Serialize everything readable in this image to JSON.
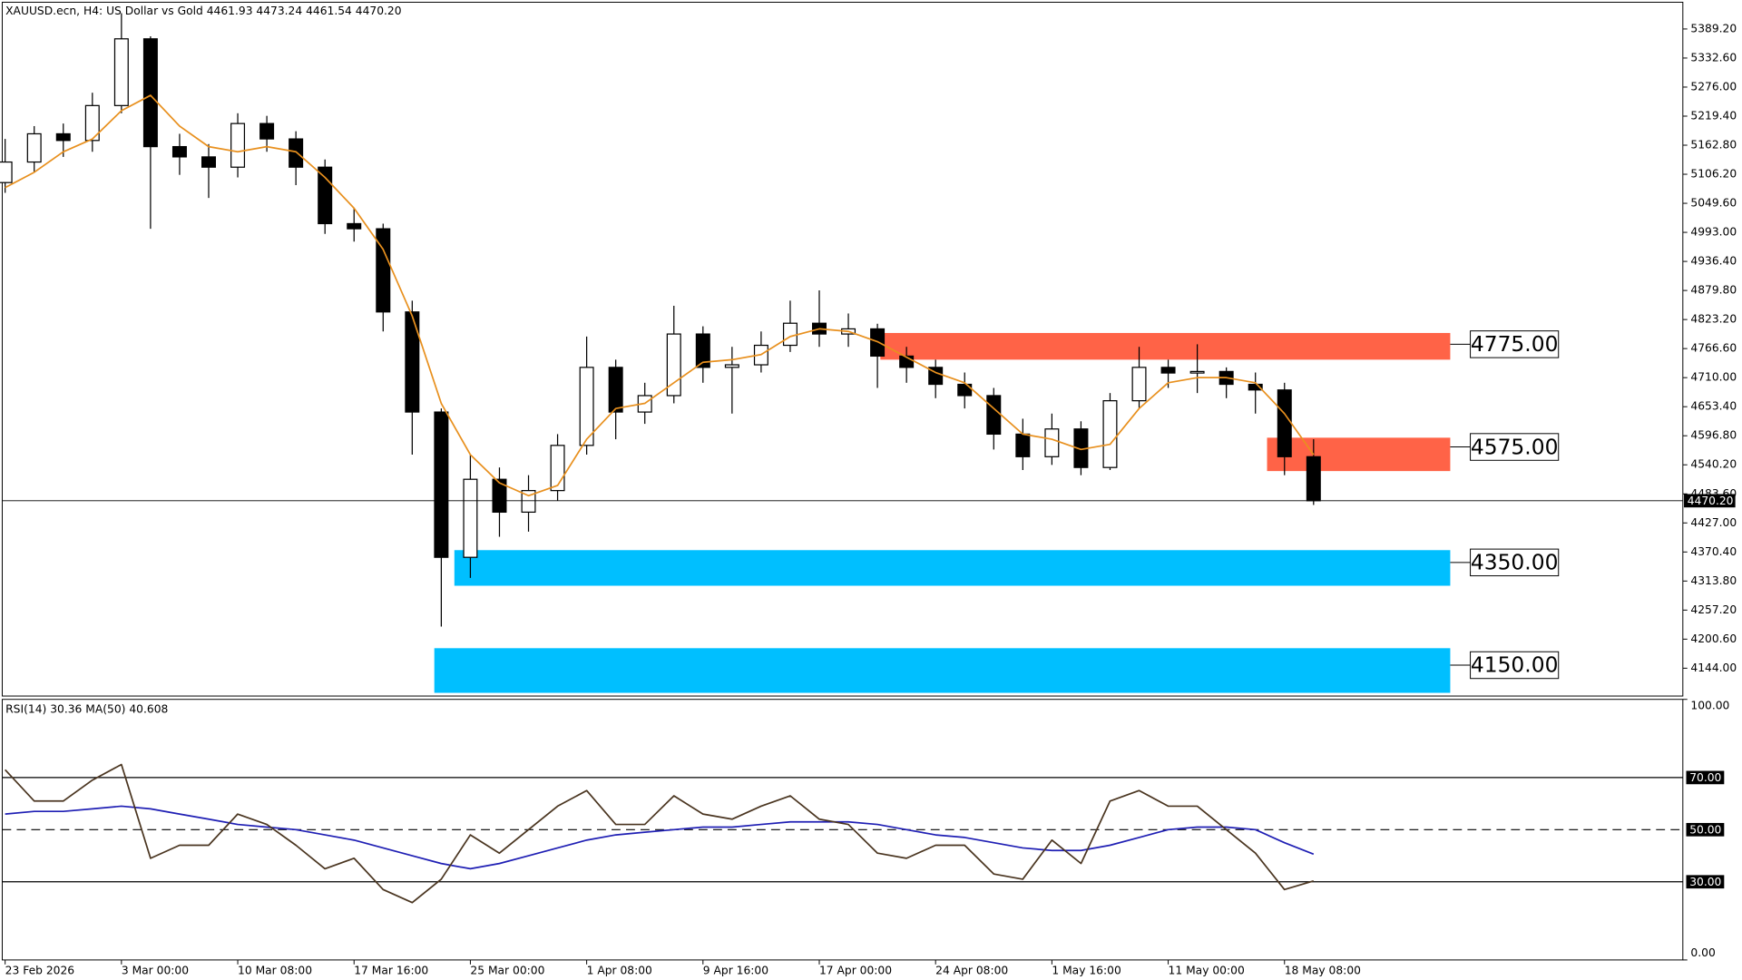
{
  "chart_data": {
    "type": "candlestick",
    "title": "XAUUSD.ecn, H4:  US Dollar vs Gold  4461.93 4473.24 4461.54 4470.20",
    "x": [
      0,
      1,
      2,
      3,
      4,
      5,
      6,
      7,
      8,
      9,
      10,
      11,
      12,
      13,
      14,
      15,
      16,
      17,
      18,
      19,
      20,
      21,
      22,
      23,
      24,
      25,
      26,
      27,
      28,
      29,
      30,
      31,
      32,
      33,
      34,
      35,
      36,
      37,
      38,
      39,
      40,
      41,
      42,
      43,
      44,
      45
    ],
    "xlim": [
      -0.1,
      57.7
    ],
    "xticks": [
      {
        "value": 0,
        "label": "23 Feb 2026"
      },
      {
        "value": 4,
        "label": "3 Mar 00:00"
      },
      {
        "value": 8,
        "label": "10 Mar 08:00"
      },
      {
        "value": 12,
        "label": "17 Mar 16:00"
      },
      {
        "value": 16,
        "label": "25 Mar 00:00"
      },
      {
        "value": 20,
        "label": "1 Apr 08:00"
      },
      {
        "value": 24,
        "label": "9 Apr 16:00"
      },
      {
        "value": 28,
        "label": "17 Apr 00:00"
      },
      {
        "value": 32,
        "label": "24 Apr 08:00"
      },
      {
        "value": 36,
        "label": "1 May 16:00"
      },
      {
        "value": 40,
        "label": "11 May 00:00"
      },
      {
        "value": 44,
        "label": "18 May 08:00"
      }
    ],
    "ylim": [
      4089.8,
      5441.3
    ],
    "yticks": [
      {
        "value": 5389.2,
        "label": "5389.20"
      },
      {
        "value": 5332.6,
        "label": "5332.60"
      },
      {
        "value": 5276,
        "label": "5276.00"
      },
      {
        "value": 5219.4,
        "label": "5219.40"
      },
      {
        "value": 5162.8,
        "label": "5162.80"
      },
      {
        "value": 5106.2,
        "label": "5106.20"
      },
      {
        "value": 5049.6,
        "label": "5049.60"
      },
      {
        "value": 4993,
        "label": "4993.00"
      },
      {
        "value": 4936.4,
        "label": "4936.40"
      },
      {
        "value": 4879.8,
        "label": "4879.80"
      },
      {
        "value": 4823.2,
        "label": "4823.20"
      },
      {
        "value": 4766.6,
        "label": "4766.60"
      },
      {
        "value": 4710,
        "label": "4710.00"
      },
      {
        "value": 4653.4,
        "label": "4653.40"
      },
      {
        "value": 4596.8,
        "label": "4596.80"
      },
      {
        "value": 4540.2,
        "label": "4540.20"
      },
      {
        "value": 4483.6,
        "label": "4483.60"
      },
      {
        "value": 4427,
        "label": "4427.00"
      },
      {
        "value": 4370.4,
        "label": "4370.40"
      },
      {
        "value": 4313.8,
        "label": "4313.80"
      },
      {
        "value": 4257.2,
        "label": "4257.20"
      },
      {
        "value": 4200.6,
        "label": "4200.60"
      },
      {
        "value": 4144,
        "label": "4144.00"
      }
    ],
    "candles": {
      "open": [
        5090,
        5130,
        5185,
        5172,
        5240,
        5370,
        5160,
        5140,
        5120,
        5205,
        5175,
        5120,
        5010,
        5000,
        4838,
        4643,
        4360,
        4512,
        4448,
        4490,
        4578,
        4730,
        4643,
        4675,
        4795,
        4730,
        4735,
        4773,
        4816,
        4795,
        4805,
        4752,
        4730,
        4697,
        4675,
        4600,
        4556,
        4610,
        4535,
        4665,
        4730,
        4719,
        4722,
        4697,
        4686,
        4556
      ],
      "high": [
        5175,
        5200,
        5205,
        5265,
        5420,
        5375,
        5185,
        5165,
        5225,
        5220,
        5190,
        5135,
        5040,
        5010,
        4860,
        4650,
        4560,
        4535,
        4520,
        4600,
        4790,
        4745,
        4700,
        4850,
        4810,
        4770,
        4800,
        4860,
        4880,
        4835,
        4815,
        4770,
        4745,
        4720,
        4690,
        4630,
        4640,
        4625,
        4680,
        4770,
        4745,
        4775,
        4730,
        4720,
        4700,
        4590
      ],
      "low": [
        5070,
        5110,
        5140,
        5150,
        5225,
        5000,
        5105,
        5060,
        5100,
        5150,
        5085,
        4990,
        4975,
        4800,
        4560,
        4225,
        4320,
        4400,
        4410,
        4470,
        4560,
        4590,
        4620,
        4660,
        4700,
        4640,
        4720,
        4760,
        4770,
        4770,
        4690,
        4700,
        4670,
        4650,
        4570,
        4530,
        4540,
        4520,
        4530,
        4650,
        4690,
        4680,
        4670,
        4640,
        4520,
        4462
      ],
      "close": [
        5130,
        5185,
        5172,
        5240,
        5370,
        5160,
        5140,
        5120,
        5205,
        5175,
        5120,
        5010,
        5000,
        4838,
        4643,
        4360,
        4512,
        4448,
        4490,
        4578,
        4730,
        4643,
        4675,
        4795,
        4730,
        4735,
        4773,
        4816,
        4795,
        4805,
        4752,
        4730,
        4697,
        4675,
        4600,
        4556,
        4610,
        4535,
        4665,
        4730,
        4719,
        4722,
        4697,
        4686,
        4556,
        4470.2
      ]
    },
    "ma": {
      "color": "#e8901e",
      "values": [
        5080,
        5110,
        5150,
        5175,
        5230,
        5260,
        5200,
        5160,
        5150,
        5160,
        5150,
        5100,
        5040,
        4960,
        4830,
        4660,
        4560,
        4505,
        4480,
        4500,
        4590,
        4650,
        4660,
        4700,
        4740,
        4745,
        4755,
        4790,
        4805,
        4800,
        4780,
        4750,
        4720,
        4700,
        4650,
        4600,
        4590,
        4570,
        4580,
        4650,
        4700,
        4710,
        4710,
        4700,
        4640,
        4560
      ]
    },
    "current_price": {
      "value": 4470.2,
      "label": "4470.20"
    },
    "zones": [
      {
        "low": 4745,
        "high": 4797,
        "x0": 30.1,
        "x1": 49.7,
        "color": "#ff6347",
        "level": {
          "value": 4775,
          "label": "4775.00"
        }
      },
      {
        "low": 4528,
        "high": 4593,
        "x0": 43.4,
        "x1": 49.7,
        "color": "#ff6347",
        "level": {
          "value": 4575,
          "label": "4575.00"
        }
      },
      {
        "low": 4304.6,
        "high": 4374,
        "x0": 15.45,
        "x1": 49.7,
        "color": "#00bfff",
        "level": {
          "value": 4350,
          "label": "4350.00"
        }
      },
      {
        "low": 4096,
        "high": 4183,
        "x0": 14.76,
        "x1": 49.7,
        "color": "#00bfff",
        "level": {
          "value": 4150,
          "label": "4150.00"
        }
      }
    ],
    "rsi": {
      "title": "RSI(14) 30.36 MA(50) 40.608",
      "ylim": [
        0,
        100
      ],
      "yticks": [
        {
          "value": 100,
          "label": "100.00"
        },
        {
          "value": 0,
          "label": "0.00"
        }
      ],
      "levels": [
        {
          "value": 70,
          "label": "70.00",
          "style": "solid"
        },
        {
          "value": 50,
          "label": "50.00",
          "style": "dashed"
        },
        {
          "value": 30,
          "label": "30.00",
          "style": "solid"
        }
      ],
      "color": "#4a3520",
      "values": [
        73,
        61,
        61,
        69,
        75,
        39,
        44,
        44,
        56,
        52,
        44,
        35,
        39,
        27,
        22,
        31,
        48,
        41,
        50,
        59,
        65,
        52,
        52,
        63,
        56,
        54,
        59,
        63,
        54,
        52,
        41,
        39,
        44,
        44,
        33,
        31,
        46,
        37,
        61,
        65,
        59,
        59,
        50,
        41,
        27,
        30.36
      ],
      "ma": {
        "color": "#1f1fb4",
        "values": [
          56,
          57,
          57,
          58,
          59,
          58,
          56,
          54,
          52,
          51,
          50,
          48,
          46,
          43,
          40,
          37,
          35,
          37,
          40,
          43,
          46,
          48,
          49,
          50,
          51,
          51,
          52,
          53,
          53,
          53,
          52,
          50,
          48,
          47,
          45,
          43,
          42,
          42,
          44,
          47,
          50,
          51,
          51,
          50,
          45,
          40.608
        ]
      }
    }
  }
}
